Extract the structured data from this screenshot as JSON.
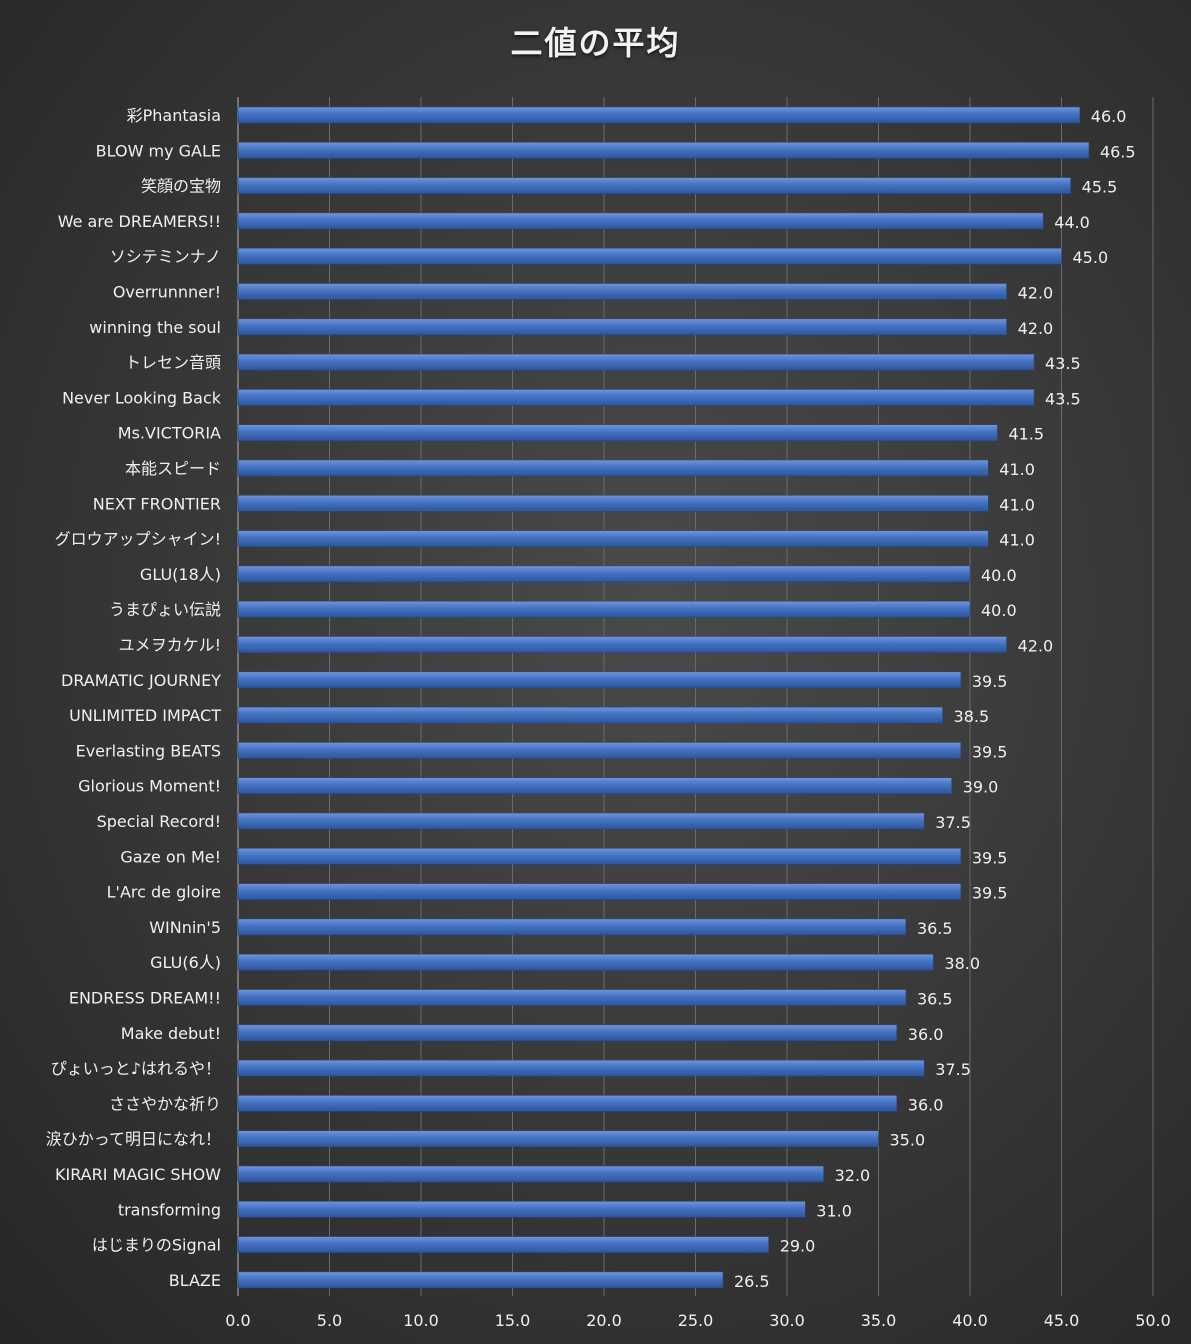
{
  "chart_data": {
    "type": "bar",
    "orientation": "horizontal",
    "title": "二値の平均",
    "categories": [
      "彩Phantasia",
      "BLOW my GALE",
      "笑顔の宝物",
      "We are DREAMERS!!",
      "ソシテミンナノ",
      "Overrunnner!",
      "winning the soul",
      "トレセン音頭",
      "Never Looking Back",
      "Ms.VICTORIA",
      "本能スピード",
      "NEXT FRONTIER",
      "グロウアップシャイン!",
      "GLU(18人)",
      "うまぴょい伝説",
      "ユメヲカケル!",
      "DRAMATIC JOURNEY",
      "UNLIMITED IMPACT",
      "Everlasting BEATS",
      "Glorious Moment!",
      "Special Record!",
      "Gaze on Me!",
      "L'Arc de gloire",
      "WINnin'5",
      "GLU(6人)",
      "ENDRESS DREAM!!",
      "Make debut!",
      "ぴょいっと♪はれるや！",
      "ささやかな祈り",
      "涙ひかって明日になれ！",
      "KIRARI MAGIC SHOW",
      "transforming",
      "はじまりのSignal",
      "BLAZE"
    ],
    "values": [
      46.0,
      46.5,
      45.5,
      44.0,
      45.0,
      42.0,
      42.0,
      43.5,
      43.5,
      41.5,
      41.0,
      41.0,
      41.0,
      40.0,
      40.0,
      42.0,
      39.5,
      38.5,
      39.5,
      39.0,
      37.5,
      39.5,
      39.5,
      36.5,
      38.0,
      36.5,
      36.0,
      37.5,
      36.0,
      35.0,
      32.0,
      31.0,
      29.0,
      26.5
    ],
    "value_labels": [
      "46.0",
      "46.5",
      "45.5",
      "44.0",
      "45.0",
      "42.0",
      "42.0",
      "43.5",
      "43.5",
      "41.5",
      "41.0",
      "41.0",
      "41.0",
      "40.0",
      "40.0",
      "42.0",
      "39.5",
      "38.5",
      "39.5",
      "39.0",
      "37.5",
      "39.5",
      "39.5",
      "36.5",
      "38.0",
      "36.5",
      "36.0",
      "37.5",
      "36.0",
      "35.0",
      "32.0",
      "31.0",
      "29.0",
      "26.5"
    ],
    "xlim": [
      0,
      50
    ],
    "xticks": [
      "0.0",
      "5.0",
      "10.0",
      "15.0",
      "20.0",
      "25.0",
      "30.0",
      "35.0",
      "40.0",
      "45.0",
      "50.0"
    ],
    "grid": true,
    "legend": "none",
    "bar_color": "#4472c4",
    "text_color": "#f0f0f0",
    "grid_color": "#6a6a6a"
  }
}
